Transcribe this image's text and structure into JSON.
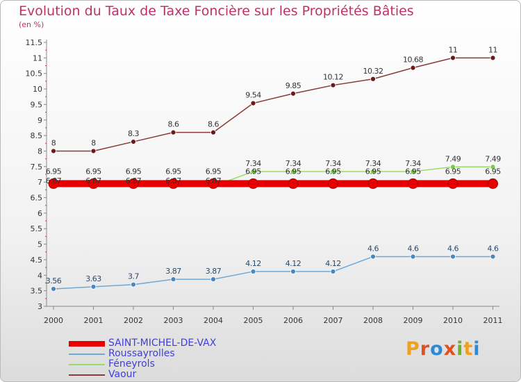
{
  "header": {
    "title": "Evolution du Taux de Taxe Foncière sur les Propriétés Bâties",
    "unit": "(en %)"
  },
  "logo": {
    "text": "Proxiti",
    "colors": [
      "#f0a020",
      "#e05020",
      "#2a8ad8",
      "#e05020",
      "#70b030",
      "#f0a020",
      "#2a8ad8"
    ]
  },
  "chart_data": {
    "type": "line",
    "title": "Evolution du Taux de Taxe Foncière sur les Propriétés Bâties",
    "ylabel": "(en %)",
    "ylim": [
      3,
      11.5
    ],
    "yticks": [
      "3",
      "3.5",
      "4",
      "4.5",
      "5",
      "5.5",
      "6",
      "6.5",
      "7",
      "7.5",
      "8",
      "8.5",
      "9",
      "9.5",
      "10",
      "10.5",
      "11",
      "11.5"
    ],
    "categories": [
      "2000",
      "2001",
      "2002",
      "2003",
      "2004",
      "2005",
      "2006",
      "2007",
      "2008",
      "2009",
      "2010",
      "2011"
    ],
    "grid": false,
    "legend_position": "bottom-left",
    "series": [
      {
        "name": "SAINT-MICHEL-DE-VAX",
        "color": "#e60000",
        "values": [
          6.95,
          6.95,
          6.95,
          6.95,
          6.95,
          6.95,
          6.95,
          6.95,
          6.95,
          6.95,
          6.95,
          6.95
        ],
        "labels": [
          "6.95",
          "6.95",
          "6.95",
          "6.95",
          "6.95",
          "6.95",
          "6.95",
          "6.95",
          "6.95",
          "6.95",
          "6.95",
          "6.95"
        ]
      },
      {
        "name": "Roussayrolles",
        "color": "#6fa8d6",
        "values": [
          3.56,
          3.63,
          3.7,
          3.87,
          3.87,
          4.12,
          4.12,
          4.12,
          4.6,
          4.6,
          4.6,
          4.6
        ],
        "labels": [
          "3.56",
          "3.63",
          "3.7",
          "3.87",
          "3.87",
          "4.12",
          "4.12",
          "4.12",
          "4.6",
          "4.6",
          "4.6",
          "4.6"
        ]
      },
      {
        "name": "Féneyrols",
        "color": "#99dd66",
        "values": [
          6.87,
          6.87,
          6.87,
          6.87,
          6.87,
          7.34,
          7.34,
          7.34,
          7.34,
          7.34,
          7.49,
          7.49
        ],
        "labels": [
          "6.87",
          "6.87",
          "6.87",
          "6.87",
          "6.87",
          "7.34",
          "7.34",
          "7.34",
          "7.34",
          "7.34",
          "7.49",
          "7.49"
        ]
      },
      {
        "name": "Vaour",
        "color": "#8b3a3a",
        "values": [
          8,
          8,
          8.3,
          8.6,
          8.6,
          9.54,
          9.85,
          10.12,
          10.32,
          10.68,
          11,
          11
        ],
        "labels": [
          "8",
          "8",
          "8.3",
          "8.6",
          "8.6",
          "9.54",
          "9.85",
          "10.12",
          "10.32",
          "10.68",
          "11",
          "11"
        ]
      }
    ]
  }
}
